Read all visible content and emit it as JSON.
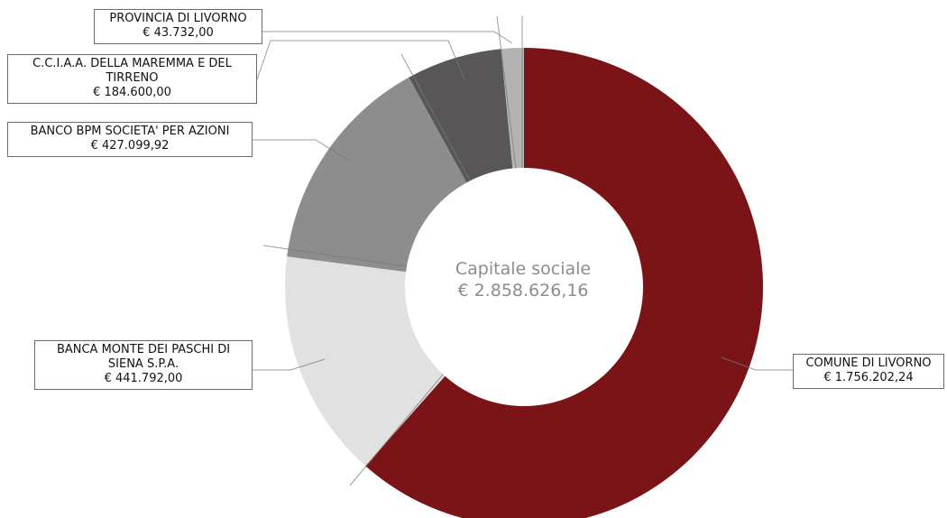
{
  "chart_data": {
    "type": "pie",
    "center_label": {
      "title": "Capitale sociale",
      "total": "€ 2.858.626,16"
    },
    "slices": [
      {
        "label": "COMUNE DI LIVORNO",
        "value": 1756202.24,
        "value_text": "€ 1.756.202,24",
        "color": "#7b1416"
      },
      {
        "label": "BANCA MONTE DEI PASCHI DI SIENA S.P.A.",
        "value": 441792.0,
        "value_text": "€ 441.792,00",
        "color": "#e1e1e1"
      },
      {
        "label": "BANCO BPM SOCIETA' PER AZIONI",
        "value": 427099.92,
        "value_text": "€ 427.099,92",
        "color": "#8d8d8d"
      },
      {
        "label": "C.C.I.A.A. DELLA MAREMMA E DEL TIRRENO",
        "value": 184600.0,
        "value_text": "€ 184.600,00",
        "color": "#585656"
      },
      {
        "label": "PROVINCIA DI LIVORNO",
        "value": 43732.0,
        "value_text": "€ 43.732,00",
        "color": "#b3b3b3"
      }
    ]
  }
}
